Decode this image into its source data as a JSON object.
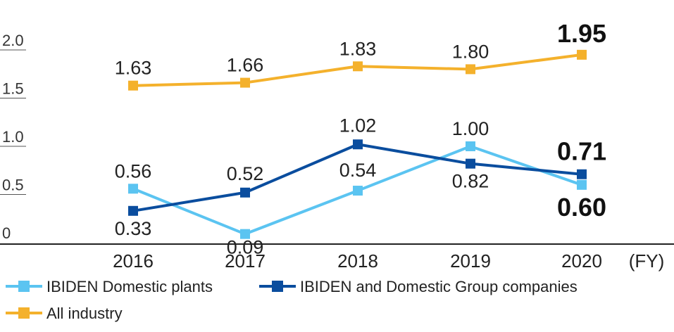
{
  "chart_data": {
    "type": "line",
    "x": [
      "2016",
      "2017",
      "2018",
      "2019",
      "2020"
    ],
    "x_unit": "(FY)",
    "ylim": [
      0,
      2.0
    ],
    "yticks": [
      "0",
      "0.5",
      "1.0",
      "1.5",
      "2.0"
    ],
    "grid": false,
    "legend_position": "bottom-left",
    "series": [
      {
        "name": "IBIDEN Domestic plants",
        "color": "#5bc4f1",
        "values": [
          0.56,
          0.09,
          0.54,
          1.0,
          0.6
        ],
        "labels": [
          "0.56",
          "0.09",
          "0.54",
          "1.00",
          "0.60"
        ]
      },
      {
        "name": "IBIDEN and Domestic Group companies",
        "color": "#0a4d9e",
        "values": [
          0.33,
          0.52,
          1.02,
          0.82,
          0.71
        ],
        "labels": [
          "0.33",
          "0.52",
          "1.02",
          "0.82",
          "0.71"
        ]
      },
      {
        "name": "All industry",
        "color": "#f4b12c",
        "values": [
          1.63,
          1.66,
          1.83,
          1.8,
          1.95
        ],
        "labels": [
          "1.63",
          "1.66",
          "1.83",
          "1.80",
          "1.95"
        ]
      }
    ]
  }
}
